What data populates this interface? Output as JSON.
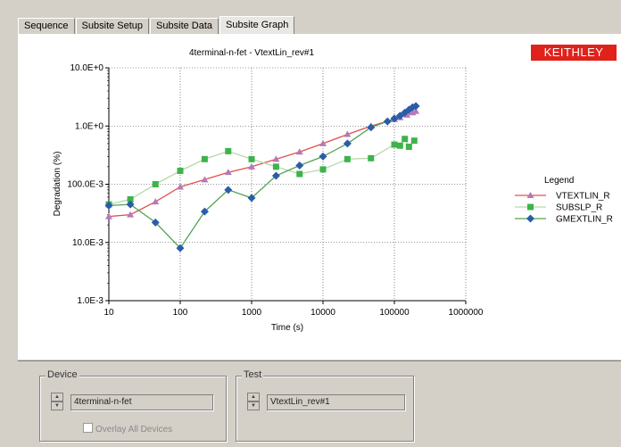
{
  "tabs": [
    "Sequence",
    "Subsite Setup",
    "Subsite Data",
    "Subsite Graph"
  ],
  "active_tab": 3,
  "brand": {
    "logo_text": "KEITHLEY",
    "logo_color": "#e0221b"
  },
  "chart_data": {
    "type": "line",
    "title": "4terminal-n-fet - VtextLin_rev#1",
    "xlabel": "Time (s)",
    "ylabel": "Degradation (%)",
    "xscale": "log",
    "yscale": "log",
    "xlim": [
      10,
      1000000
    ],
    "ylim": [
      0.001,
      10
    ],
    "x_ticks": [
      "10",
      "100",
      "1000",
      "10000",
      "100000",
      "1000000"
    ],
    "y_ticks": [
      "1.0E-3",
      "10.0E-3",
      "100.0E-3",
      "1.0E+0",
      "10.0E+0"
    ],
    "grid": true,
    "legend_title": "Legend",
    "legend_position": "right",
    "series": [
      {
        "name": "VTEXTLIN_R",
        "color": "#e05050",
        "marker_color": "#b37ab8",
        "marker": "triangle",
        "x": [
          10,
          20,
          45,
          100,
          220,
          470,
          1000,
          2200,
          4700,
          10000,
          22000,
          47000,
          100000,
          120000,
          150000,
          180000,
          200000
        ],
        "y": [
          0.028,
          0.03,
          0.05,
          0.09,
          0.12,
          0.16,
          0.2,
          0.27,
          0.36,
          0.5,
          0.72,
          1.0,
          1.3,
          1.4,
          1.55,
          1.7,
          1.8
        ]
      },
      {
        "name": "SUBSLP_R",
        "color": "#b8d8a8",
        "marker_color": "#3cb44b",
        "marker": "square",
        "x": [
          10,
          20,
          45,
          100,
          220,
          470,
          1000,
          2200,
          4700,
          10000,
          22000,
          47000,
          100000,
          120000,
          140000,
          160000,
          190000
        ],
        "y": [
          0.045,
          0.055,
          0.1,
          0.17,
          0.27,
          0.37,
          0.27,
          0.2,
          0.15,
          0.18,
          0.27,
          0.28,
          0.48,
          0.46,
          0.6,
          0.44,
          0.56
        ]
      },
      {
        "name": "GMEXTLIN_R",
        "color": "#52a352",
        "marker_color": "#2a5caa",
        "marker": "diamond",
        "x": [
          10,
          20,
          45,
          100,
          220,
          470,
          1000,
          2200,
          4700,
          10000,
          22000,
          47000,
          80000,
          100000,
          120000,
          140000,
          160000,
          180000,
          200000
        ],
        "y": [
          0.043,
          0.045,
          0.022,
          0.008,
          0.034,
          0.08,
          0.058,
          0.14,
          0.21,
          0.3,
          0.5,
          0.95,
          1.2,
          1.35,
          1.5,
          1.7,
          1.9,
          2.1,
          2.2
        ]
      }
    ]
  },
  "device": {
    "label": "Device",
    "value": "4terminal-n-fet",
    "overlay_label": "Overlay All Devices"
  },
  "test": {
    "label": "Test",
    "value": "VtextLin_rev#1"
  }
}
